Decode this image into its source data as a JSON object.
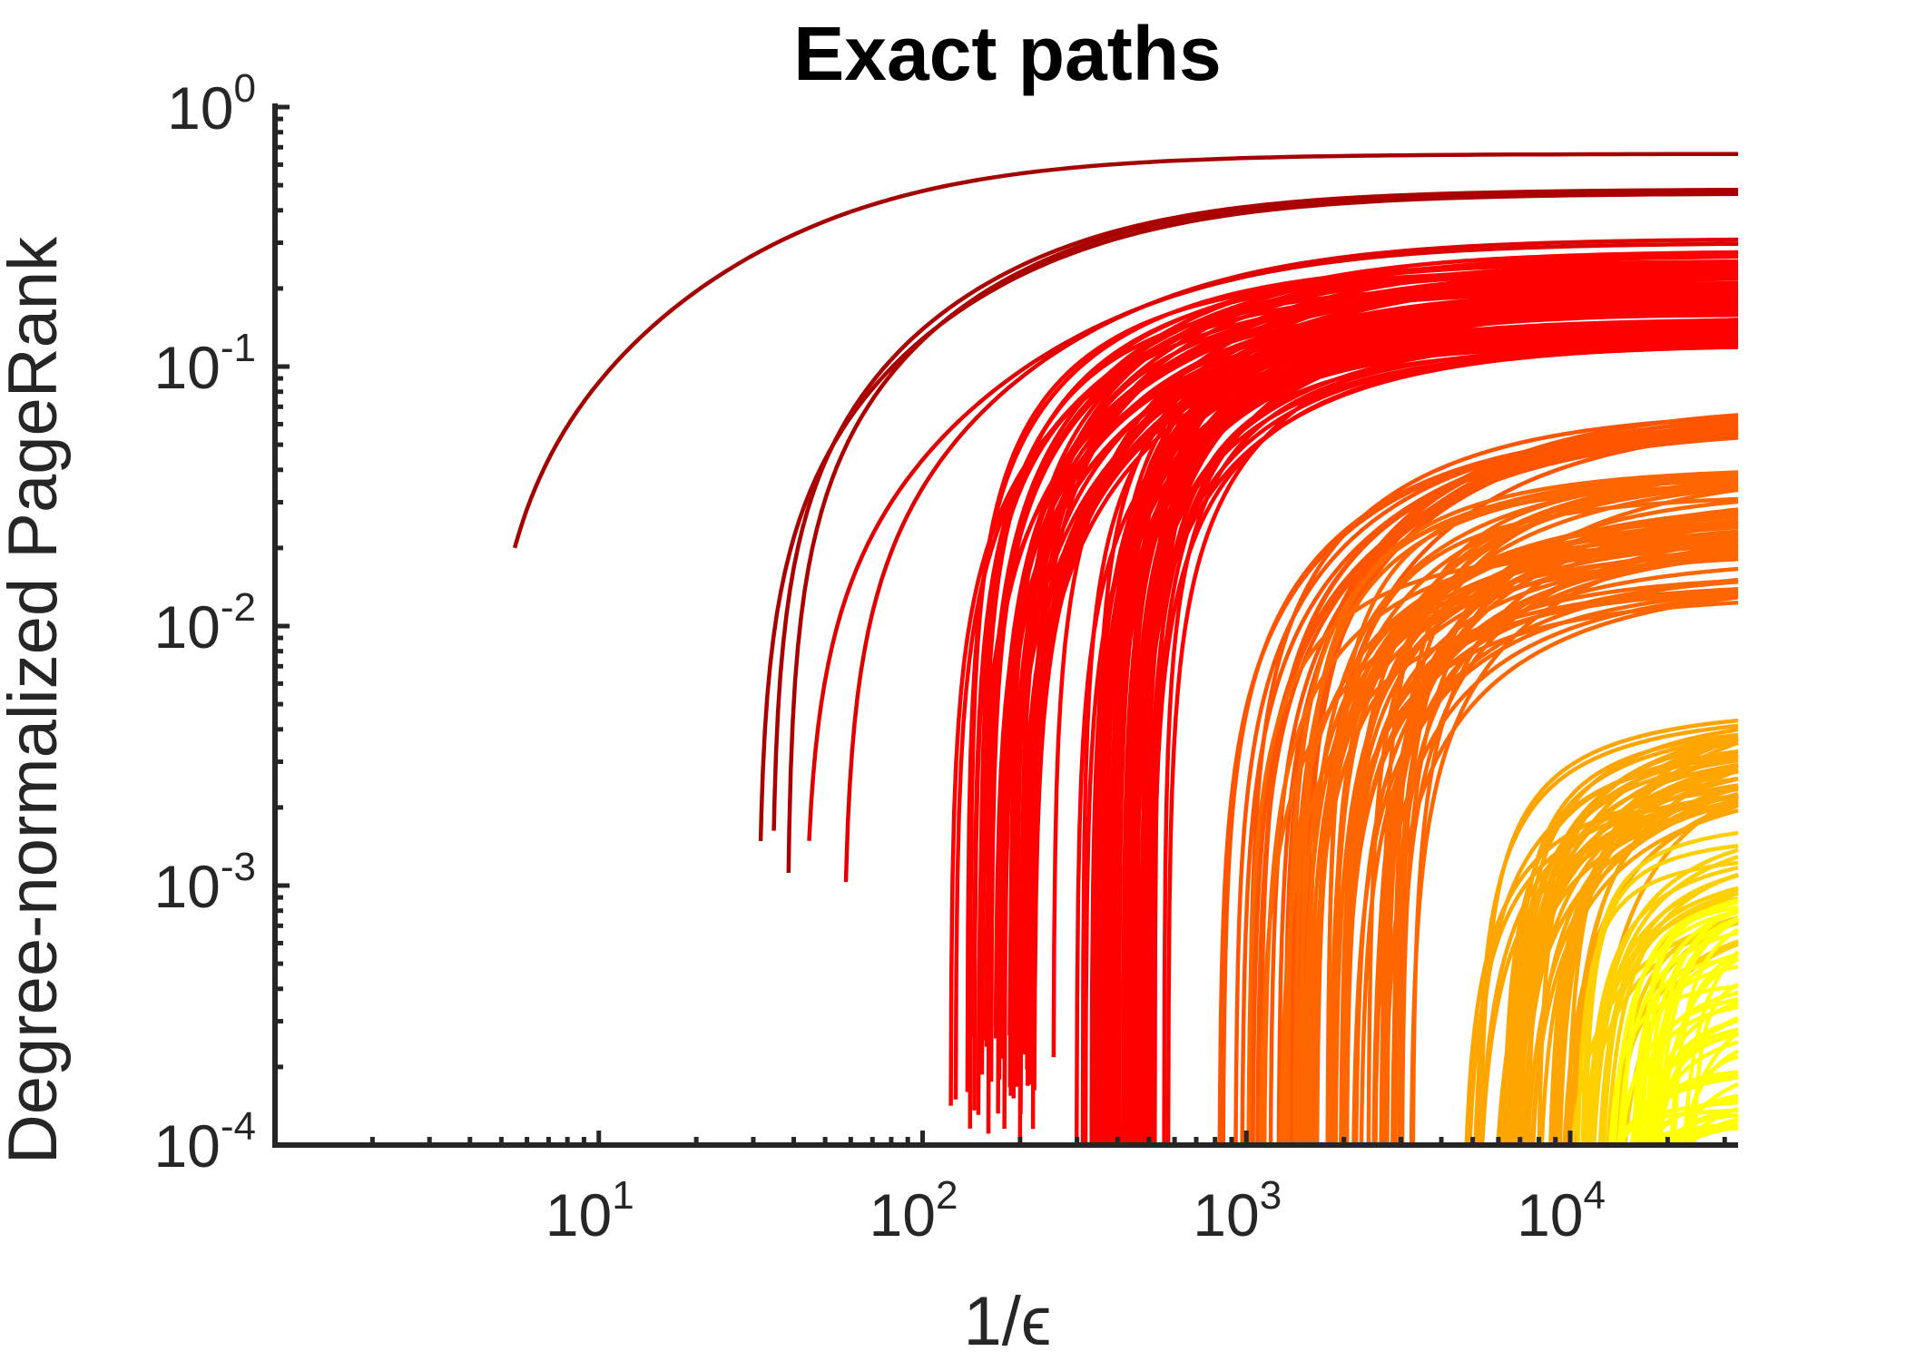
{
  "chart_data": {
    "type": "line",
    "title": "Exact paths",
    "xlabel": "1/ϵ",
    "ylabel": "Degree-normalized PageRank",
    "x_scale": "log",
    "y_scale": "log",
    "xlim": [
      1,
      33000
    ],
    "ylim": [
      0.0001,
      1
    ],
    "x_ticks": [
      {
        "base": "10",
        "exp": "1",
        "value": 10
      },
      {
        "base": "10",
        "exp": "2",
        "value": 100
      },
      {
        "base": "10",
        "exp": "3",
        "value": 1000
      },
      {
        "base": "10",
        "exp": "4",
        "value": 10000
      }
    ],
    "y_ticks": [
      {
        "base": "10",
        "exp": "0",
        "value": 1
      },
      {
        "base": "10",
        "exp": "-1",
        "value": 0.1
      },
      {
        "base": "10",
        "exp": "-2",
        "value": 0.01
      },
      {
        "base": "10",
        "exp": "-3",
        "value": 0.001
      },
      {
        "base": "10",
        "exp": "-4",
        "value": 0.0001
      }
    ],
    "grid": false,
    "legend": "none",
    "colormap": [
      "#8b0000",
      "#d40000",
      "#ff0000",
      "#ff5a00",
      "#ff9a00",
      "#ffc800",
      "#ffff00"
    ],
    "series_groups": [
      {
        "color": "#a50000",
        "count": 1,
        "start_x": [
          5.5,
          5.5
        ],
        "start_y": [
          0.02,
          0.02
        ],
        "end_y": [
          0.66,
          0.66
        ],
        "half_x_factor": [
          8,
          8
        ]
      },
      {
        "color": "#aa0000",
        "count": 3,
        "start_x": [
          28,
          40
        ],
        "start_y": [
          0.001,
          0.0018
        ],
        "end_y": [
          0.46,
          0.49
        ],
        "half_x_factor": [
          5,
          7
        ]
      },
      {
        "color": "#e00000",
        "count": 2,
        "start_x": [
          42,
          75
        ],
        "start_y": [
          0.0006,
          0.0019
        ],
        "end_y": [
          0.38,
          0.29
        ],
        "half_x_factor": [
          6,
          9
        ]
      },
      {
        "color": "#ff0000",
        "count": 40,
        "start_x": [
          110,
          300
        ],
        "start_y": [
          0.0001,
          0.0003
        ],
        "end_y": [
          0.17,
          0.28
        ],
        "half_x_factor": [
          2.5,
          5
        ]
      },
      {
        "color": "#ff0000",
        "count": 55,
        "start_x": [
          280,
          600
        ],
        "start_y": [
          0.0001,
          0.0001
        ],
        "end_y": [
          0.12,
          0.2
        ],
        "half_x_factor": [
          1.8,
          3
        ]
      },
      {
        "color": "#ff5500",
        "count": 20,
        "start_x": [
          700,
          1800
        ],
        "start_y": [
          0.0001,
          0.0001
        ],
        "end_y": [
          0.056,
          0.072
        ],
        "half_x_factor": [
          2.5,
          4
        ]
      },
      {
        "color": "#ff6600",
        "count": 60,
        "start_x": [
          1000,
          3800
        ],
        "start_y": [
          0.0001,
          0.0001
        ],
        "end_y": [
          0.013,
          0.044
        ],
        "half_x_factor": [
          1.8,
          3
        ]
      },
      {
        "color": "#ffa500",
        "count": 45,
        "start_x": [
          4500,
          12000
        ],
        "start_y": [
          0.0001,
          0.0001
        ],
        "end_y": [
          0.0025,
          0.0052
        ],
        "half_x_factor": [
          1.5,
          2.5
        ]
      },
      {
        "color": "#ffd000",
        "count": 20,
        "start_x": [
          9000,
          16000
        ],
        "start_y": [
          0.0001,
          0.0001
        ],
        "end_y": [
          0.0008,
          0.0019
        ],
        "half_x_factor": [
          1.2,
          1.8
        ]
      },
      {
        "color": "#ffff00",
        "count": 50,
        "start_x": [
          12000,
          26000
        ],
        "start_y": [
          0.0001,
          0.0001
        ],
        "end_y": [
          0.00012,
          0.0012
        ],
        "half_x_factor": [
          1.1,
          1.5
        ]
      }
    ]
  }
}
